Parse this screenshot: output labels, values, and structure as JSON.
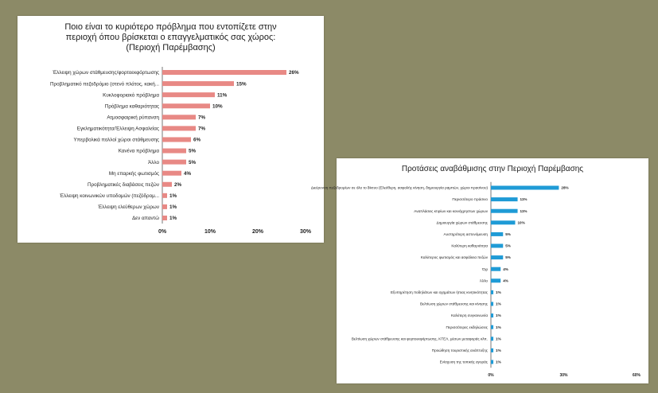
{
  "colors": {
    "background": "#8c8a67",
    "left_bar": "#e88985",
    "right_bar": "#1f9bd6"
  },
  "chart_data": [
    {
      "type": "bar",
      "orientation": "horizontal",
      "title": "Ποιο είναι το κυριότερο πρόβλημα που εντοπίζετε στην περιοχή όπου βρίσκεται ο επαγγελματικός σας χώρος: (Περιοχή Παρέμβασης)",
      "categories": [
        "Έλλειψη χώρων στάθμευσης/φορτοεκφόρτωσης",
        "Προβληματικό πεζοδρόμιο (στενό πλάτος, κακή...",
        "Κυκλοφοριακό πρόβλημα",
        "Πρόβλημα καθαριότητας",
        "Ατμοσφαιρική ρύπανση",
        "Εγκληματικότητα/Έλλειψη Ασφαλείας",
        "Υπερβολικά πολλοί χώροι στάθμευσης",
        "Κανένα πρόβλημα",
        "Άλλο",
        "Μη επαρκής φωτισμός",
        "Προβληματικές διαβάσεις πεζών",
        "Έλλειψη κοινωνικών υποδομών (πεζόδρομ...",
        "Έλλειψη ελεύθερων χώρων",
        "Δεν απαντώ"
      ],
      "values": [
        26,
        15,
        11,
        10,
        7,
        7,
        6,
        5,
        5,
        4,
        2,
        1,
        1,
        1
      ],
      "value_labels": [
        "26%",
        "15%",
        "11%",
        "10%",
        "7%",
        "7%",
        "6%",
        "5%",
        "5%",
        "4%",
        "2%",
        "1%",
        "1%",
        "1%"
      ],
      "xlim": [
        0,
        30
      ],
      "xticks": [
        "0%",
        "10%",
        "20%",
        "30%"
      ],
      "grid": false
    },
    {
      "type": "bar",
      "orientation": "horizontal",
      "title": "Προτάσεις αναβάθμισης στην Περιοχή Παρέμβασης",
      "categories": [
        "Διεύρυνση πεζοδρομίων σε όλο το δίκτυο (Ελεύθερη, ασφαλής κίνηση, δημιουργία ραμπών, χώροι πρασίνου)",
        "Περισσότερο πράσινο",
        "Αναπλάσεις κτιρίων και κοινόχρηστων χώρων",
        "Δημιουργία χώρων στάθμευσης",
        "Αυστηρότερη αστυνόμευση",
        "Καλύτερη καθαριότητα",
        "Καλύτερος φωτισμός και ασφάλεια πεζών",
        "Όχι",
        "Άλλο",
        "Εξυπηρέτηση ποδηλάτων και οχημάτων ήπιας κινητικότητας",
        "Βελτίωση χώρων στάθμευσης και κίνησης",
        "Καλύτερη συγκοινωνία",
        "Περισσότερες εκδηλώσεις",
        "Βελτίωση χώρων στάθμευσης και φορτοεκφόρτωσης, ΚΤΕΛ, μέσων μεταφοράς κλπ.",
        "Προώθηση τουριστικής ανάπτυξης",
        "Ενίσχυση της τοπικής αγοράς"
      ],
      "values": [
        28,
        11,
        11,
        10,
        5,
        5,
        5,
        4,
        4,
        1,
        1,
        1,
        1,
        1,
        1,
        1
      ],
      "value_labels": [
        "28%",
        "11%",
        "11%",
        "10%",
        "5%",
        "5%",
        "5%",
        "4%",
        "4%",
        "1%",
        "1%",
        "1%",
        "1%",
        "1%",
        "1%",
        "1%"
      ],
      "xlim": [
        0,
        60
      ],
      "xticks": [
        "0%",
        "30%",
        "60%"
      ],
      "grid": false
    }
  ]
}
